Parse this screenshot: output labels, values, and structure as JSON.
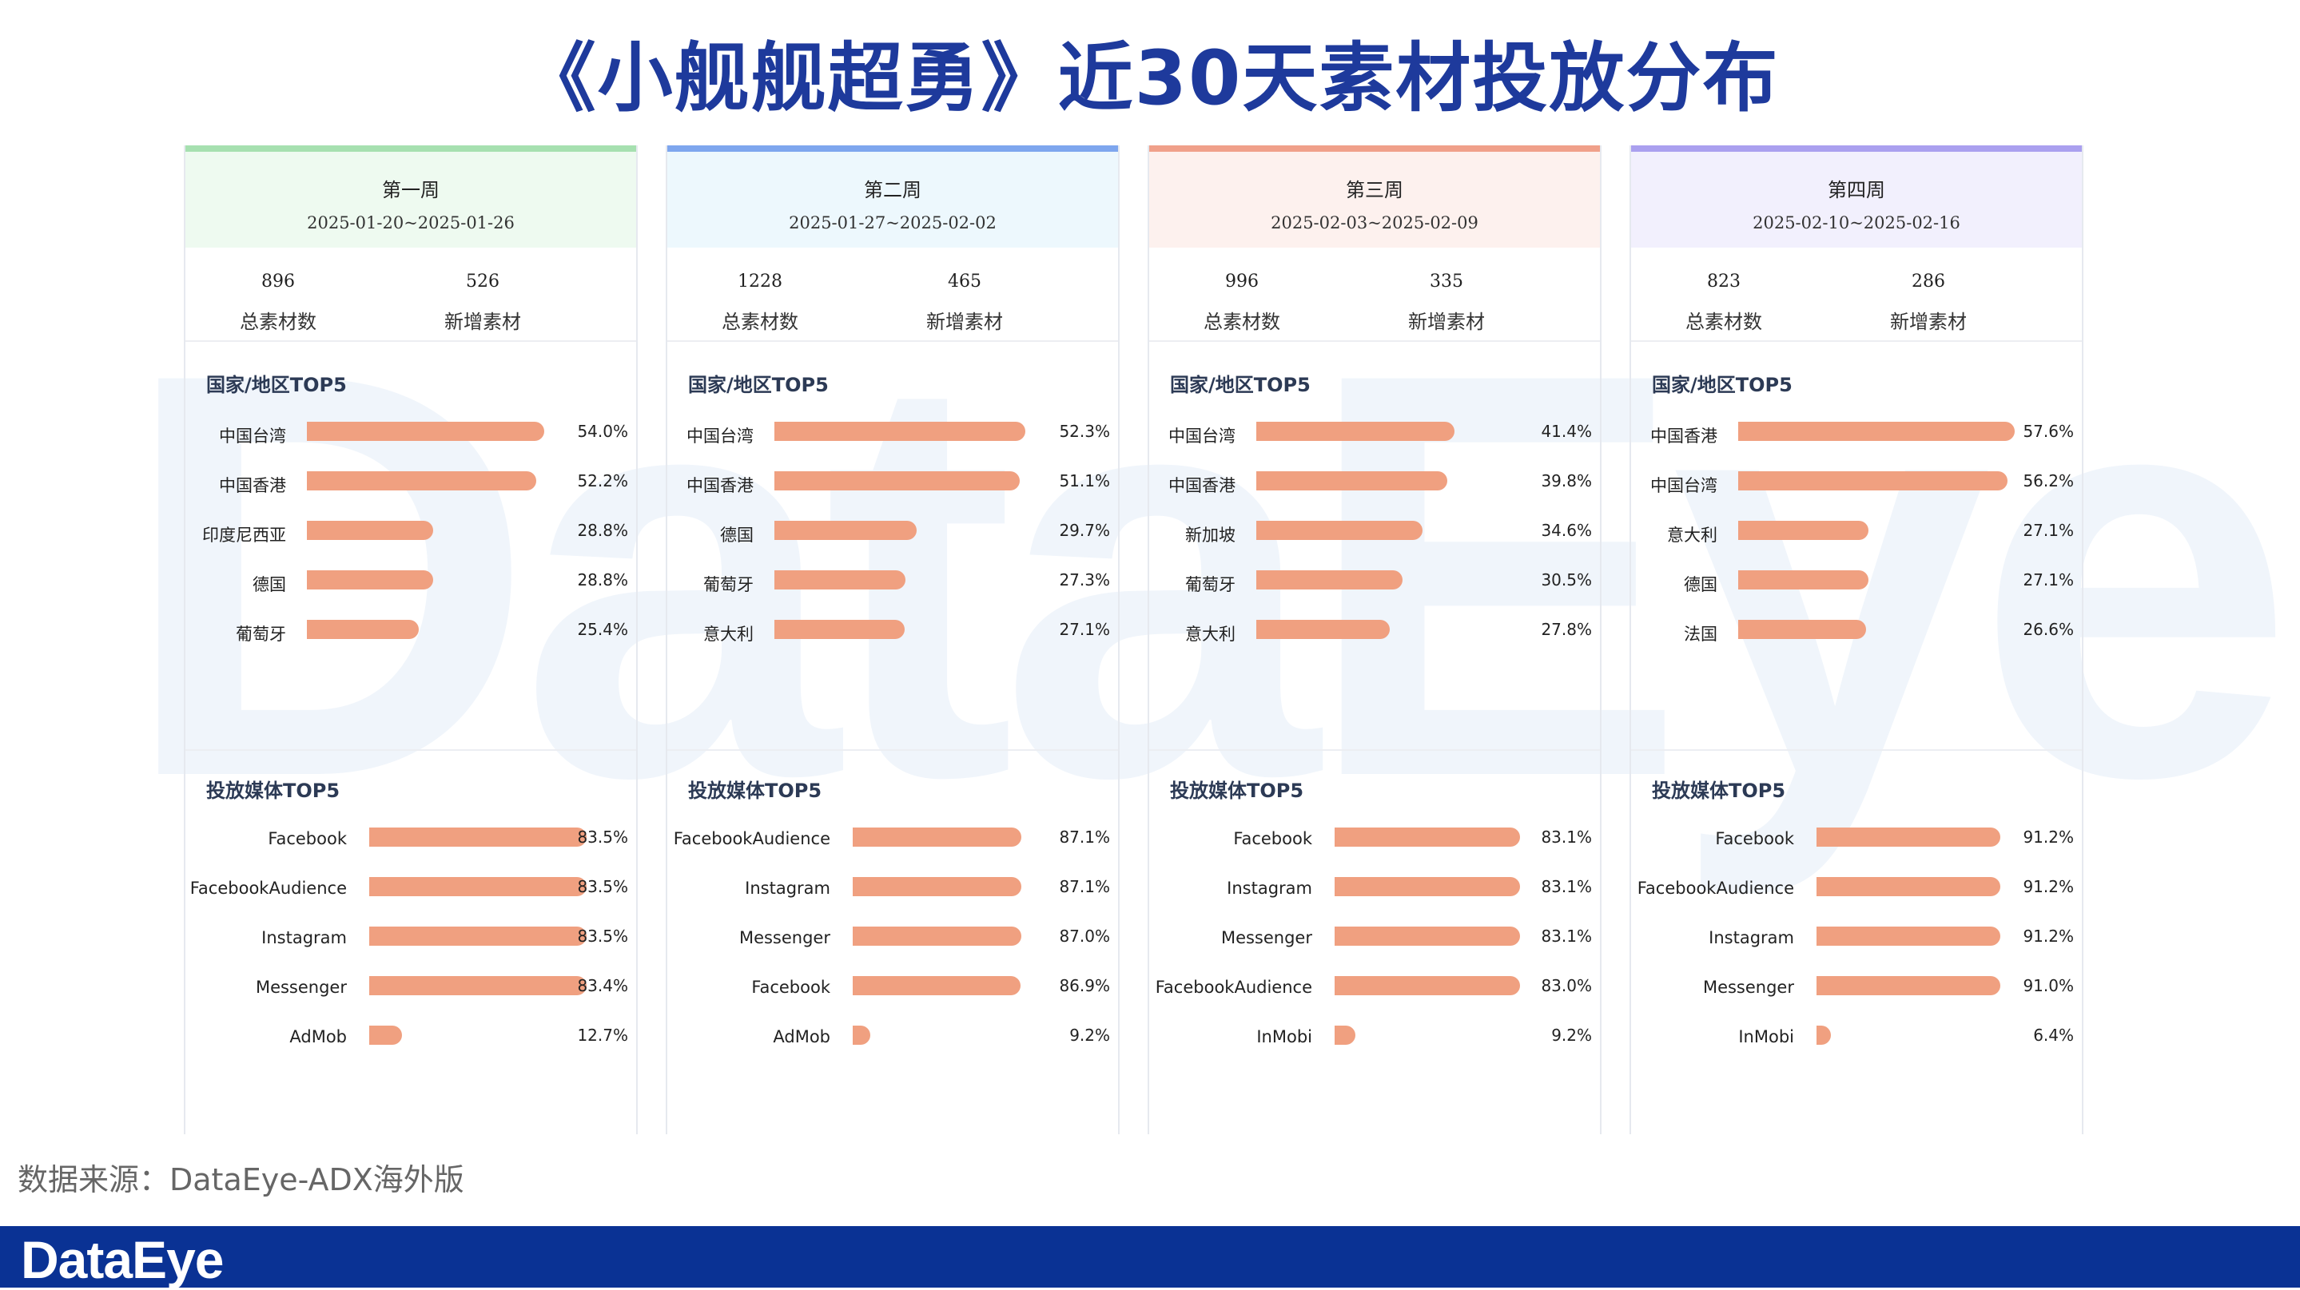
{
  "title": "《小舰舰超勇》近30天素材投放分布",
  "watermark_text": "DataEye",
  "source_text": "数据来源：DataEye-ADX海外版",
  "brand_logo": "DataEye",
  "labels": {
    "total": "总素材数",
    "new": "新增素材",
    "region_section": "国家/地区TOP5",
    "media_section": "投放媒体TOP5"
  },
  "colors": {
    "bar": "#f0a080",
    "week1_accent": "#a6e0b0",
    "week1_head_bg": "#eefaf0",
    "week2_accent": "#7ea6ee",
    "week2_head_bg": "#edf8fd",
    "week3_accent": "#f0a08a",
    "week3_head_bg": "#fdf1ee",
    "week4_accent": "#aaa0ef",
    "week4_head_bg": "#f2f0fd",
    "title": "#1e3a9c",
    "footer_bar": "#0a3294"
  },
  "chart_data": [
    {
      "type": "bar",
      "week": "第一周",
      "date_range": "2025-01-20~2025-01-26",
      "total": "896",
      "new": "526",
      "regions": {
        "categories": [
          "中国台湾",
          "中国香港",
          "印度尼西亚",
          "德国",
          "葡萄牙"
        ],
        "values": [
          54.0,
          52.2,
          28.8,
          28.8,
          25.4
        ],
        "value_labels": [
          "54.0%",
          "52.2%",
          "28.8%",
          "28.8%",
          "25.4%"
        ]
      },
      "media": {
        "categories": [
          "Facebook",
          "FacebookAudience",
          "Instagram",
          "Messenger",
          "AdMob"
        ],
        "values": [
          83.5,
          83.5,
          83.5,
          83.4,
          12.7
        ],
        "value_labels": [
          "83.5%",
          "83.5%",
          "83.5%",
          "83.4%",
          "12.7%"
        ]
      }
    },
    {
      "type": "bar",
      "week": "第二周",
      "date_range": "2025-01-27~2025-02-02",
      "total": "1228",
      "new": "465",
      "regions": {
        "categories": [
          "中国台湾",
          "中国香港",
          "德国",
          "葡萄牙",
          "意大利"
        ],
        "values": [
          52.3,
          51.1,
          29.7,
          27.3,
          27.1
        ],
        "value_labels": [
          "52.3%",
          "51.1%",
          "29.7%",
          "27.3%",
          "27.1%"
        ]
      },
      "media": {
        "categories": [
          "FacebookAudience",
          "Instagram",
          "Messenger",
          "Facebook",
          "AdMob"
        ],
        "values": [
          87.1,
          87.1,
          87.0,
          86.9,
          9.2
        ],
        "value_labels": [
          "87.1%",
          "87.1%",
          "87.0%",
          "86.9%",
          "9.2%"
        ]
      }
    },
    {
      "type": "bar",
      "week": "第三周",
      "date_range": "2025-02-03~2025-02-09",
      "total": "996",
      "new": "335",
      "regions": {
        "categories": [
          "中国台湾",
          "中国香港",
          "新加坡",
          "葡萄牙",
          "意大利"
        ],
        "values": [
          41.4,
          39.8,
          34.6,
          30.5,
          27.8
        ],
        "value_labels": [
          "41.4%",
          "39.8%",
          "34.6%",
          "30.5%",
          "27.8%"
        ]
      },
      "media": {
        "categories": [
          "Facebook",
          "Instagram",
          "Messenger",
          "FacebookAudience",
          "InMobi"
        ],
        "values": [
          83.1,
          83.1,
          83.1,
          83.0,
          9.2
        ],
        "value_labels": [
          "83.1%",
          "83.1%",
          "83.1%",
          "83.0%",
          "9.2%"
        ]
      }
    },
    {
      "type": "bar",
      "week": "第四周",
      "date_range": "2025-02-10~2025-02-16",
      "total": "823",
      "new": "286",
      "regions": {
        "categories": [
          "中国香港",
          "中国台湾",
          "意大利",
          "德国",
          "法国"
        ],
        "values": [
          57.6,
          56.2,
          27.1,
          27.1,
          26.6
        ],
        "value_labels": [
          "57.6%",
          "56.2%",
          "27.1%",
          "27.1%",
          "26.6%"
        ]
      },
      "media": {
        "categories": [
          "Facebook",
          "FacebookAudience",
          "Instagram",
          "Messenger",
          "InMobi"
        ],
        "values": [
          91.2,
          91.2,
          91.2,
          91.0,
          6.4
        ],
        "value_labels": [
          "91.2%",
          "91.2%",
          "91.2%",
          "91.0%",
          "6.4%"
        ]
      }
    }
  ]
}
